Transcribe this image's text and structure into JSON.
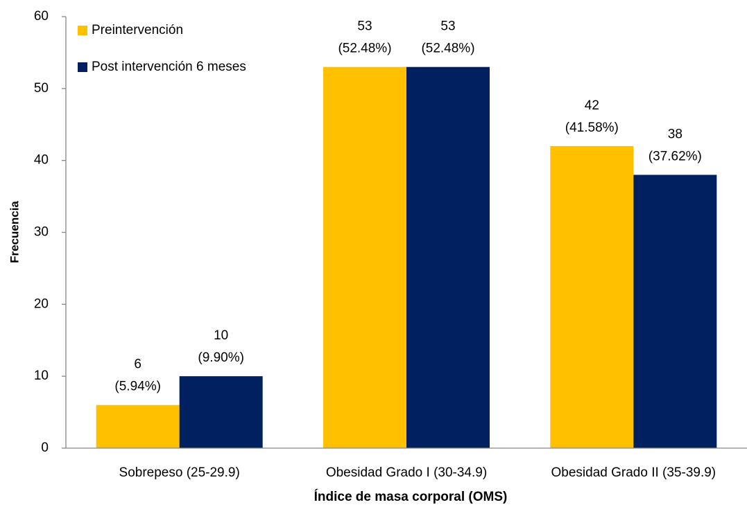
{
  "chart_data": {
    "type": "bar",
    "x_label": "Índice de masa corporal (OMS)",
    "y_label": "Frecuencia",
    "categories": [
      "Sobrepeso (25-29.9)",
      "Obesidad Grado I (30-34.9)",
      "Obesidad Grado II (35-39.9)"
    ],
    "series": [
      {
        "name": "Preintervención",
        "color": "#FFC000",
        "values": [
          6,
          53,
          42
        ],
        "value_labels": [
          [
            "6",
            "(5.94%)"
          ],
          [
            "53",
            "(52.48%)"
          ],
          [
            "42",
            "(41.58%)"
          ]
        ]
      },
      {
        "name": "Post intervención 6 meses",
        "color": "#002060",
        "values": [
          10,
          53,
          38
        ],
        "value_labels": [
          [
            "10",
            "(9.90%)"
          ],
          [
            "53",
            "(52.48%)"
          ],
          [
            "38",
            "(37.62%)"
          ]
        ]
      }
    ],
    "ylim": [
      0,
      60
    ],
    "yticks": [
      0,
      10,
      20,
      30,
      40,
      50,
      60
    ],
    "grid": false,
    "legend": "upper left"
  }
}
